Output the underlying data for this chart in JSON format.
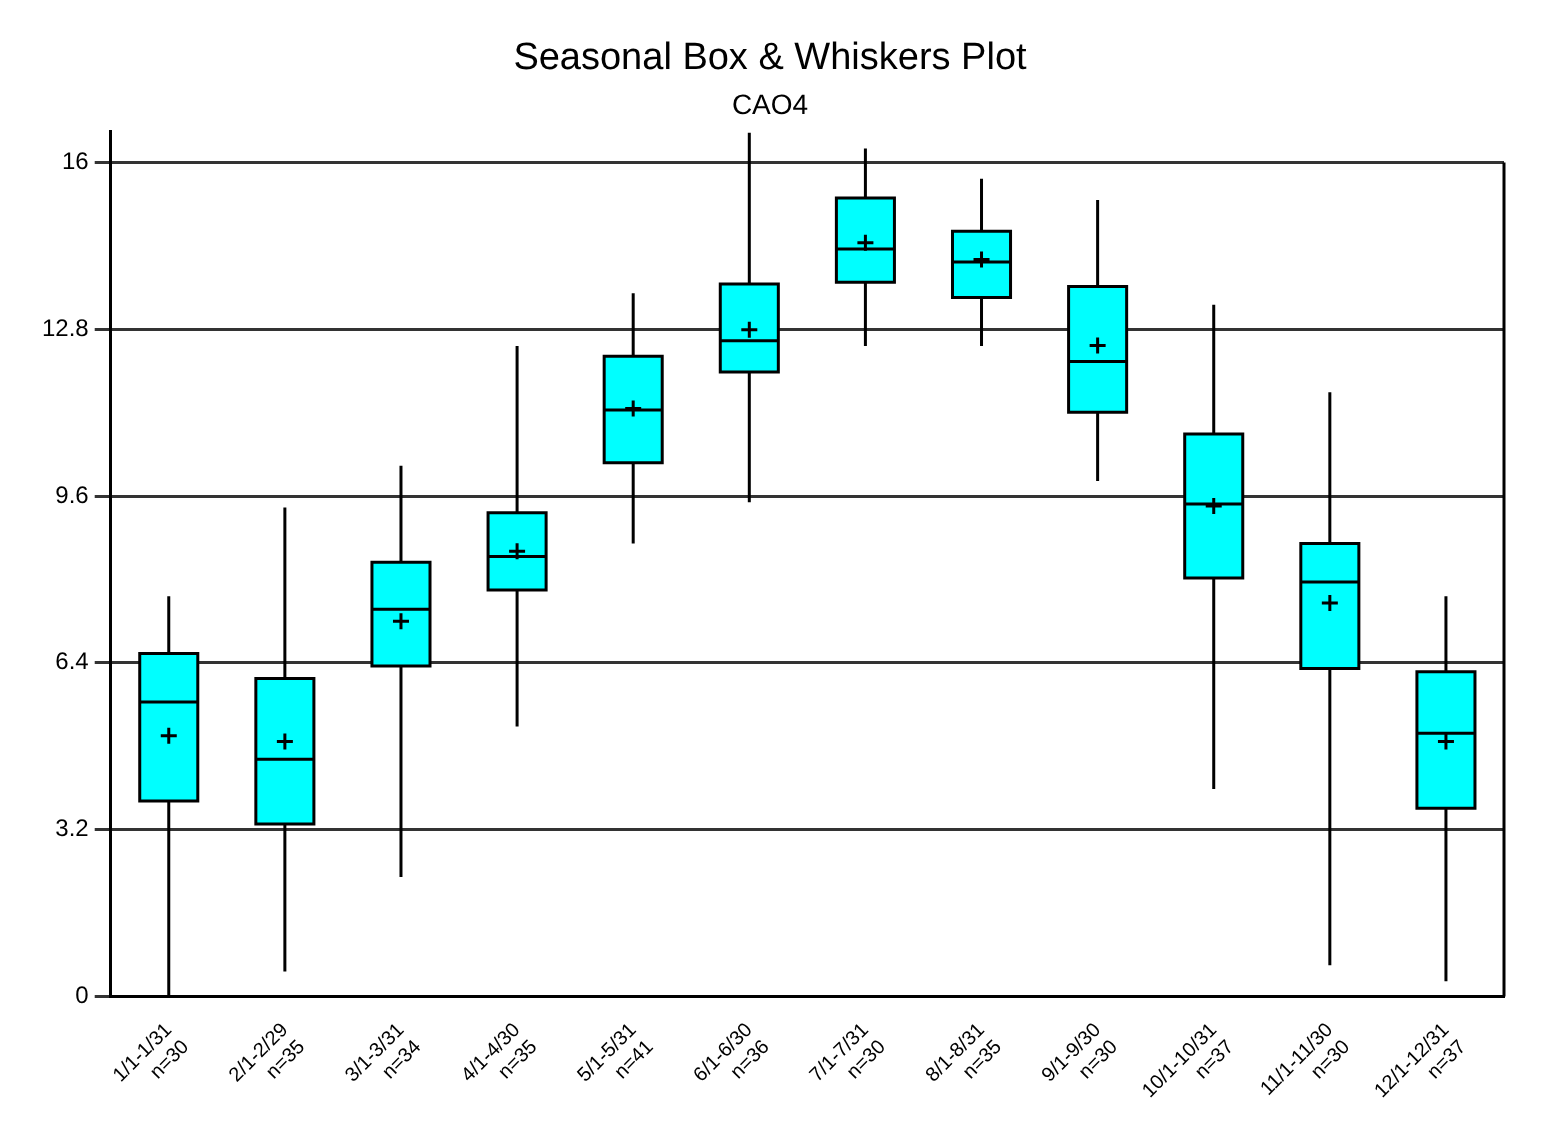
{
  "chart_data": {
    "type": "box",
    "title": "Seasonal Box & Whiskers Plot",
    "subtitle": "CAO4",
    "categories": [
      "1/1-1/31\nn=30",
      "2/1-2/29\nn=35",
      "3/1-3/31\nn=34",
      "4/1-4/30\nn=35",
      "5/1-5/31\nn=41",
      "6/1-6/30\nn=36",
      "7/1-7/31\nn=30",
      "8/1-8/31\nn=35",
      "9/1-9/30\nn=30",
      "10/1-10/31\nn=37",
      "11/1-11/30\nn=30",
      "12/1-12/31\nn=37"
    ],
    "color": "#00ffff",
    "boxes": [
      {
        "low": 0,
        "q1": 3.75,
        "median": 5.65,
        "q3": 6.58,
        "high": 7.68,
        "mean": 5.0
      },
      {
        "low": 0.48,
        "q1": 3.31,
        "median": 4.55,
        "q3": 6.1,
        "high": 9.38,
        "mean": 4.89
      },
      {
        "low": 2.29,
        "q1": 6.34,
        "median": 7.43,
        "q3": 8.33,
        "high": 10.18,
        "mean": 7.2
      },
      {
        "low": 5.18,
        "q1": 7.8,
        "median": 8.44,
        "q3": 9.28,
        "high": 12.48,
        "mean": 8.54
      },
      {
        "low": 8.69,
        "q1": 10.24,
        "median": 11.25,
        "q3": 12.28,
        "high": 13.49,
        "mean": 11.28
      },
      {
        "low": 9.48,
        "q1": 11.98,
        "median": 12.58,
        "q3": 13.67,
        "high": 16.57,
        "mean": 12.79
      },
      {
        "low": 12.48,
        "q1": 13.7,
        "median": 14.34,
        "q3": 15.32,
        "high": 16.27,
        "mean": 14.46
      },
      {
        "low": 12.48,
        "q1": 13.41,
        "median": 14.09,
        "q3": 14.68,
        "high": 15.69,
        "mean": 14.14
      },
      {
        "low": 9.89,
        "q1": 11.21,
        "median": 12.18,
        "q3": 13.62,
        "high": 15.28,
        "mean": 12.49
      },
      {
        "low": 3.98,
        "q1": 8.03,
        "median": 9.45,
        "q3": 10.79,
        "high": 13.27,
        "mean": 9.41
      },
      {
        "low": 0.6,
        "q1": 6.29,
        "median": 7.95,
        "q3": 8.69,
        "high": 11.59,
        "mean": 7.55
      },
      {
        "low": 0.29,
        "q1": 3.61,
        "median": 5.05,
        "q3": 6.23,
        "high": 7.68,
        "mean": 4.89
      }
    ],
    "ylim": [
      0,
      16.6
    ],
    "yticks": [
      0,
      3.2,
      6.4,
      9.6,
      12.8,
      16
    ],
    "grid": "y"
  }
}
